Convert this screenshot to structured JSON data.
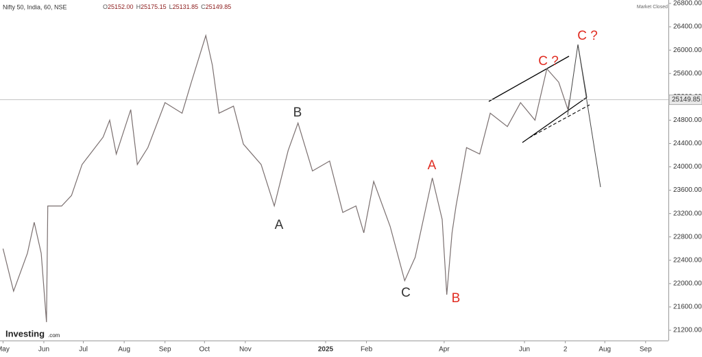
{
  "chart_data": {
    "type": "line",
    "title": "Nifty 50, India, 60, NSE",
    "ohlc_labels": [
      "O",
      "H",
      "L",
      "C"
    ],
    "ohlc_values": [
      "25152.00",
      "25175.15",
      "25131.85",
      "25149.85"
    ],
    "status": "Market Closed",
    "logo": [
      "Investing",
      ".com"
    ],
    "annotations": [
      "A",
      "B",
      "C",
      "A",
      "B",
      "C ?",
      "C ?"
    ],
    "color": "#7a6f6f",
    "last_price": 25149.85,
    "x": [
      0,
      8,
      18.5,
      23.7,
      29,
      33,
      34,
      44.5,
      52,
      60,
      76,
      81,
      86,
      97,
      102,
      110,
      123,
      136,
      143,
      154,
      159,
      164,
      175,
      182.5,
      196,
      206,
      216.5,
      224,
      235,
      248,
      258,
      268,
      274,
      281.5,
      294,
      305,
      313,
      326,
      333.5,
      337,
      341,
      344,
      352,
      362,
      370,
      383,
      393,
      404,
      413,
      422,
      429,
      430
    ],
    "values": [
      22600,
      21870,
      22520,
      23050,
      22520,
      21340,
      23330,
      23330,
      23510,
      24040,
      24510,
      24800,
      24220,
      24980,
      24040,
      24330,
      25100,
      24920,
      25450,
      26250,
      25740,
      24920,
      25040,
      24390,
      24040,
      23330,
      24280,
      24750,
      23930,
      24100,
      23220,
      23330,
      22870,
      23750,
      22980,
      22050,
      22450,
      23810,
      23100,
      21810,
      22870,
      23330,
      24330,
      24220,
      24920,
      24690,
      25100,
      24800,
      25680,
      25450,
      24980,
      25150
    ],
    "xlim": [
      -2.3,
      505.3
    ],
    "xticks": [
      {
        "value": 0,
        "label": "May"
      },
      {
        "value": 31,
        "label": "Jun"
      },
      {
        "value": 61,
        "label": "Jul"
      },
      {
        "value": 92,
        "label": "Aug"
      },
      {
        "value": 123,
        "label": "Sep"
      },
      {
        "value": 153,
        "label": "Oct"
      },
      {
        "value": 184,
        "label": "Nov"
      },
      {
        "value": 245,
        "label": "2025"
      },
      {
        "value": 276,
        "label": "Feb"
      },
      {
        "value": 335,
        "label": "Apr"
      },
      {
        "value": 396,
        "label": "Jun"
      },
      {
        "value": 427,
        "label": "2"
      },
      {
        "value": 457,
        "label": "Aug"
      },
      {
        "value": 488,
        "label": "Sep"
      }
    ],
    "ylim": [
      21024,
      26859
    ],
    "yticks": [
      {
        "value": 21200,
        "label": "21200.00"
      },
      {
        "value": 21600,
        "label": "21600.00"
      },
      {
        "value": 22000,
        "label": "22000.00"
      },
      {
        "value": 22400,
        "label": "22400.00"
      },
      {
        "value": 22800,
        "label": "22800.00"
      },
      {
        "value": 23200,
        "label": "23200.00"
      },
      {
        "value": 23600,
        "label": "23600.00"
      },
      {
        "value": 24000,
        "label": "24000.00"
      },
      {
        "value": 24400,
        "label": "24400.00"
      },
      {
        "value": 24800,
        "label": "24800.00"
      },
      {
        "value": 25200,
        "label": "25200.00"
      },
      {
        "value": 25600,
        "label": "25600.00"
      },
      {
        "value": 26000,
        "label": "26000.00"
      },
      {
        "value": 26400,
        "label": "26400.00"
      },
      {
        "value": 26800,
        "label": "26800.00"
      }
    ]
  }
}
